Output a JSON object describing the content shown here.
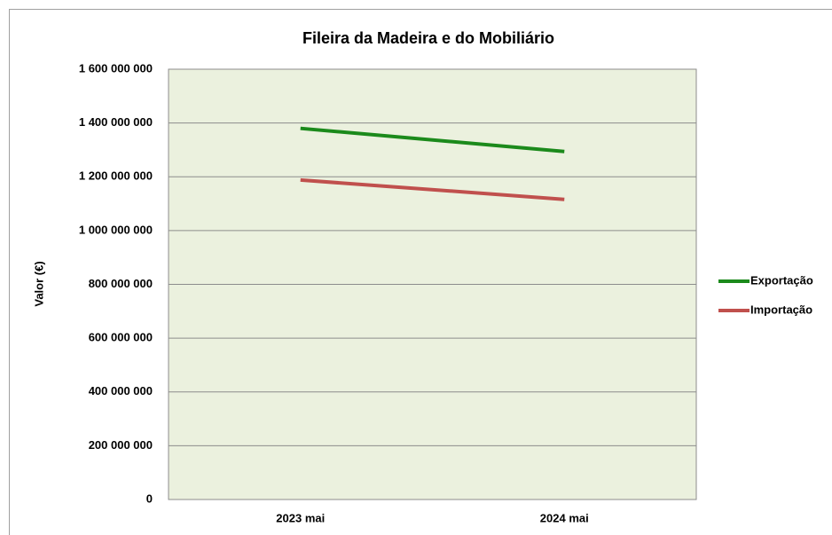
{
  "chart_data": {
    "type": "line",
    "title": "Fileira da Madeira e do Mobiliário",
    "y_label": "Valor (€)",
    "categories": [
      "2023 mai",
      "2024 mai"
    ],
    "series": [
      {
        "name": "Exportação",
        "color": "#1b8a1b",
        "values": [
          1380000000,
          1294000000
        ]
      },
      {
        "name": "Importação",
        "color": "#c0504d",
        "values": [
          1188000000,
          1116000000
        ]
      }
    ],
    "ylim": [
      0,
      1600000000
    ],
    "yticks": [
      0,
      {
        "value": 200000000,
        "label": "200 000 000"
      },
      {
        "value": 400000000,
        "label": "400 000 000"
      },
      {
        "value": 600000000,
        "label": "600 000 000"
      },
      {
        "value": 800000000,
        "label": "800 000 000"
      },
      {
        "value": 1000000000,
        "label": "1 000 000 000"
      },
      {
        "value": 1200000000,
        "label": "1 200 000 000"
      },
      {
        "value": 1400000000,
        "label": "1 400 000 000"
      },
      {
        "value": 1600000000,
        "label": "1 600 000 000"
      }
    ],
    "grid": true,
    "legend": "right"
  }
}
